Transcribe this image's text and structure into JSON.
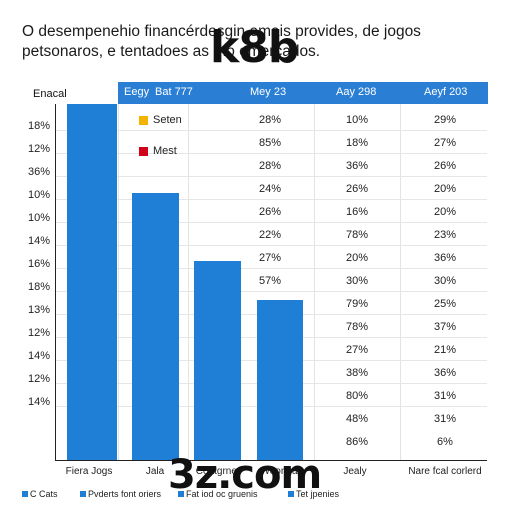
{
  "title": "O desempenehio financérdesgin emais provides, de jogos petsonaros, e tentadoes as   mo   emercados.",
  "watermarks": {
    "top": "k8b",
    "bottom": "3z.com"
  },
  "table_header": {
    "left": "Enacal",
    "columns": [
      "Eegy",
      "Bat 777",
      "Mey 23",
      "Aay 298",
      "Aeyf 203"
    ]
  },
  "colors": {
    "header": "#2a7fd4",
    "bar": "#1f7fd6",
    "legend_1": "#f2b400",
    "legend_2": "#d0021b"
  },
  "chart_data": {
    "type": "bar",
    "title": "O desempenehio financérdesgin emais provides, de jogos petsonaros, e tentadoes as   mo   emercados.",
    "y_labels": [
      "18%",
      "12%",
      "36%",
      "10%",
      "10%",
      "14%",
      "16%",
      "18%",
      "13%",
      "12%",
      "14%",
      "12%",
      "14%"
    ],
    "categories": [
      "Fiera Jogs",
      "Jala",
      "Coatgrner",
      "Weonf a"
    ],
    "values": [
      100,
      75,
      56,
      45
    ],
    "ylim": [
      0,
      100
    ],
    "legend": [
      {
        "name": "Seten",
        "color": "#f2b400"
      },
      {
        "name": "Mest",
        "color": "#d0021b"
      }
    ],
    "table_columns": [
      {
        "values": [
          "28%",
          "85%",
          "28%",
          "24%",
          "26%",
          "22%",
          "27%",
          "57%"
        ]
      },
      {
        "values": [
          "10%",
          "18%",
          "36%",
          "26%",
          "16%",
          "78%",
          "20%",
          "30%",
          "79%",
          "78%",
          "27%",
          "38%",
          "80%",
          "48%",
          "86%"
        ]
      },
      {
        "values": [
          "29%",
          "27%",
          "26%",
          "20%",
          "20%",
          "23%",
          "36%",
          "30%",
          "25%",
          "37%",
          "21%",
          "36%",
          "31%",
          "31%",
          "6%"
        ]
      }
    ],
    "extra_x_labels": [
      "Jealy",
      "Nare fcal corlerd"
    ],
    "footer": [
      "C Cats",
      "Pvderts font oriers",
      "Fat iod oc gruenis",
      "Tet jpenies"
    ]
  }
}
